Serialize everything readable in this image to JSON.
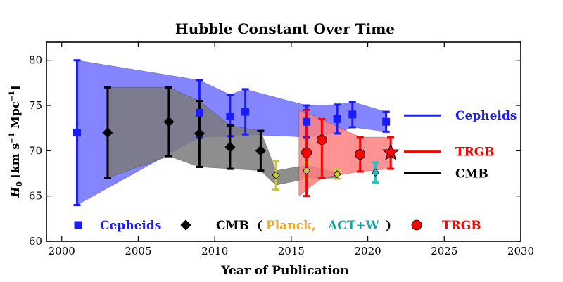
{
  "chart_data": {
    "type": "scatter",
    "title": "Hubble Constant Over Time",
    "xlabel": "Year of Publication",
    "ylabel_main": "H",
    "ylabel_sub": "0",
    "ylabel_unit_open": "[km s",
    "ylabel_sup": "−1",
    "ylabel_unit_close": " Mpc",
    "ylabel_sup2": "−1",
    "ylabel_bracket": "]",
    "xlim": [
      1999,
      2030
    ],
    "ylim": [
      60,
      82
    ],
    "xticks": [
      "2000",
      "2005",
      "2010",
      "2015",
      "2020",
      "2025",
      "2030"
    ],
    "yticks": [
      "60",
      "65",
      "70",
      "75",
      "80"
    ],
    "grid": false,
    "colors": {
      "cepheids": "#1a1aff",
      "cepheids_band": "#7070ff",
      "cmb": "#000000",
      "cmb_band": "#7a7a7a",
      "trgb": "#ff0000",
      "trgb_band": "#ff8080",
      "planck": "#f5a623",
      "planck_marker": "#c8c832",
      "act": "#1aa3a3",
      "act_marker": "#2abfbf"
    },
    "series": [
      {
        "name": "Cepheids",
        "marker": "square",
        "points": [
          {
            "x": 2001,
            "y": 72.0,
            "lo": 64.0,
            "hi": 80.0
          },
          {
            "x": 2009,
            "y": 74.2,
            "lo": 71.5,
            "hi": 77.8
          },
          {
            "x": 2011,
            "y": 73.8,
            "lo": 71.6,
            "hi": 76.2
          },
          {
            "x": 2012,
            "y": 74.3,
            "lo": 71.8,
            "hi": 76.8
          },
          {
            "x": 2016,
            "y": 73.2,
            "lo": 71.5,
            "hi": 75.0
          },
          {
            "x": 2018,
            "y": 73.5,
            "lo": 71.9,
            "hi": 75.1
          },
          {
            "x": 2019,
            "y": 74.0,
            "lo": 72.6,
            "hi": 75.4
          },
          {
            "x": 2021.2,
            "y": 73.2,
            "lo": 72.1,
            "hi": 74.3
          }
        ],
        "band_upper": [
          [
            2001,
            80.0
          ],
          [
            2009,
            77.8
          ],
          [
            2011,
            76.2
          ],
          [
            2012,
            76.8
          ],
          [
            2016,
            75.0
          ],
          [
            2018,
            75.1
          ],
          [
            2019,
            75.4
          ],
          [
            2021.2,
            74.3
          ]
        ],
        "band_lower": [
          [
            2001,
            64.0
          ],
          [
            2009,
            71.5
          ],
          [
            2011,
            71.6
          ],
          [
            2012,
            71.8
          ],
          [
            2016,
            71.5
          ],
          [
            2018,
            71.9
          ],
          [
            2019,
            72.6
          ],
          [
            2021.2,
            72.1
          ]
        ]
      },
      {
        "name": "CMB",
        "marker": "diamond",
        "points": [
          {
            "x": 2003,
            "y": 72.0,
            "lo": 67.0,
            "hi": 77.0
          },
          {
            "x": 2007,
            "y": 73.2,
            "lo": 69.4,
            "hi": 77.0
          },
          {
            "x": 2009,
            "y": 71.9,
            "lo": 68.2,
            "hi": 75.5
          },
          {
            "x": 2011,
            "y": 70.4,
            "lo": 68.0,
            "hi": 72.8
          },
          {
            "x": 2013,
            "y": 70.0,
            "lo": 67.8,
            "hi": 72.2
          }
        ],
        "band_upper": [
          [
            2003,
            77.0
          ],
          [
            2007,
            77.0
          ],
          [
            2009,
            75.5
          ],
          [
            2011,
            72.8
          ],
          [
            2013,
            72.2
          ],
          [
            2014,
            67.8
          ],
          [
            2016,
            68.4
          ],
          [
            2018,
            67.6
          ]
        ],
        "band_lower": [
          [
            2003,
            67.0
          ],
          [
            2007,
            69.4
          ],
          [
            2009,
            68.2
          ],
          [
            2011,
            68.0
          ],
          [
            2013,
            67.8
          ],
          [
            2014,
            66.2
          ],
          [
            2016,
            66.9
          ],
          [
            2018,
            67.0
          ]
        ]
      },
      {
        "name": "Planck",
        "marker": "diamond",
        "points": [
          {
            "x": 2014,
            "y": 67.3,
            "lo": 65.7,
            "hi": 68.9
          },
          {
            "x": 2016,
            "y": 67.8,
            "lo": 66.9,
            "hi": 68.7
          },
          {
            "x": 2018,
            "y": 67.4,
            "lo": 66.9,
            "hi": 67.9
          }
        ]
      },
      {
        "name": "ACT+W",
        "marker": "diamond",
        "points": [
          {
            "x": 2020.5,
            "y": 67.6,
            "lo": 66.5,
            "hi": 68.7
          }
        ]
      },
      {
        "name": "TRGB",
        "marker": "circle",
        "points": [
          {
            "x": 2016,
            "y": 69.8,
            "lo": 65.0,
            "hi": 74.5
          },
          {
            "x": 2017,
            "y": 71.2,
            "lo": 67.0,
            "hi": 73.5
          },
          {
            "x": 2019.5,
            "y": 69.6,
            "lo": 67.7,
            "hi": 71.5
          },
          {
            "x": 2021.5,
            "y": 69.8,
            "lo": 68.0,
            "hi": 71.5
          }
        ],
        "star": {
          "x": 2021.5,
          "y": 69.8
        },
        "band_upper": [
          [
            2015.5,
            74.5
          ],
          [
            2017,
            73.5
          ],
          [
            2019.5,
            71.5
          ],
          [
            2021.5,
            71.5
          ]
        ],
        "band_lower": [
          [
            2015.5,
            65.0
          ],
          [
            2017,
            67.0
          ],
          [
            2019.5,
            67.7
          ],
          [
            2021.5,
            68.0
          ]
        ]
      }
    ],
    "right_legend": [
      {
        "label": "Cepheids",
        "color_key": "cepheids",
        "y": 73.9
      },
      {
        "label": "TRGB",
        "color_key": "trgb",
        "y": 69.9
      },
      {
        "label": "CMB",
        "color_key": "cmb",
        "y": 67.5
      }
    ],
    "bottom_legend": {
      "cepheids": "Cepheids",
      "cmb": "CMB",
      "open_paren": "(",
      "planck": "Planck,",
      "act": "ACT+W",
      "close_paren": ")",
      "trgb": "TRGB"
    }
  }
}
